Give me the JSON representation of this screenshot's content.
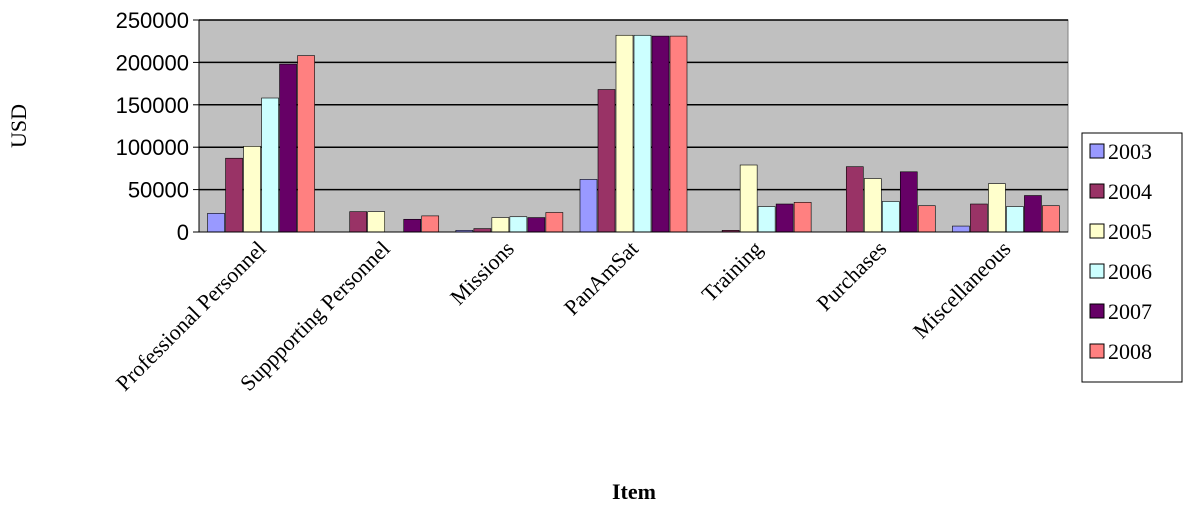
{
  "chart_data": {
    "type": "bar",
    "title": "",
    "xlabel": "Item",
    "ylabel": "USD",
    "ylim": [
      0,
      250000
    ],
    "yticks": [
      "0",
      "50000",
      "100000",
      "150000",
      "200000",
      "250000"
    ],
    "grid": true,
    "legend_position": "right",
    "categories": [
      "Professional Personnel",
      "Suppporting Personnel",
      "Missions",
      "PanAmSat",
      "Training",
      "Purchases",
      "Miscellaneous"
    ],
    "series": [
      {
        "name": "2003",
        "color": "#9999FF",
        "values": [
          22000,
          0,
          2000,
          62000,
          0,
          0,
          7000
        ]
      },
      {
        "name": "2004",
        "color": "#993366",
        "values": [
          87000,
          24000,
          4000,
          168000,
          2000,
          77000,
          33000
        ]
      },
      {
        "name": "2005",
        "color": "#FFFFCC",
        "values": [
          101000,
          24000,
          17000,
          232000,
          79000,
          63000,
          57000
        ]
      },
      {
        "name": "2006",
        "color": "#CCFFFF",
        "values": [
          158000,
          0,
          18000,
          232000,
          30000,
          36000,
          30000
        ]
      },
      {
        "name": "2007",
        "color": "#660066",
        "values": [
          198000,
          15000,
          17000,
          231000,
          33000,
          71000,
          43000
        ]
      },
      {
        "name": "2008",
        "color": "#FF8080",
        "values": [
          208000,
          19000,
          23000,
          231000,
          35000,
          31000,
          31000
        ]
      }
    ]
  }
}
